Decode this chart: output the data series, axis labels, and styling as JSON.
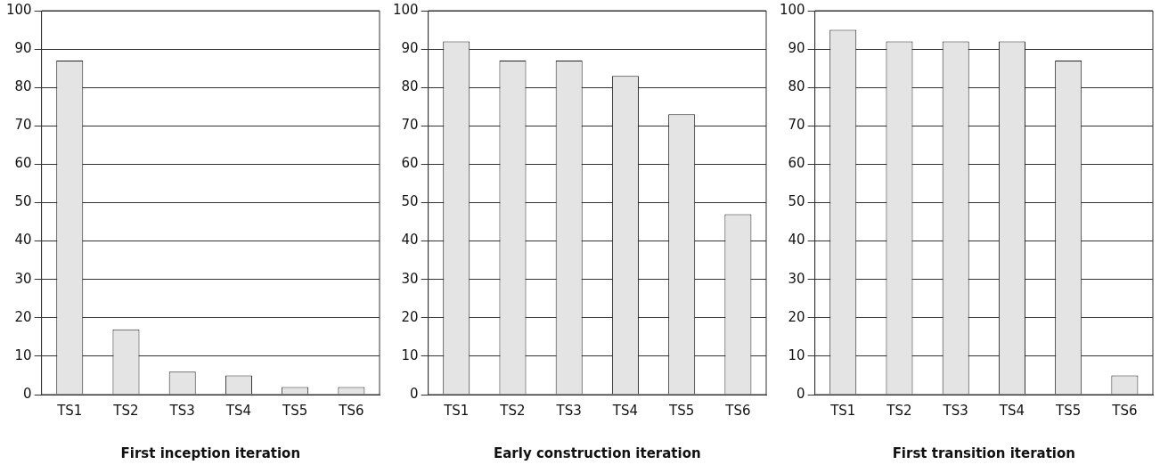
{
  "chart_data": [
    {
      "type": "bar",
      "xlabel": "First inception iteration",
      "categories": [
        "TS1",
        "TS2",
        "TS3",
        "TS4",
        "TS5",
        "TS6"
      ],
      "values": [
        87,
        17,
        6,
        5,
        2,
        2
      ],
      "color": "#e4e4e4",
      "ylim": [
        0,
        100
      ],
      "yticks": [
        0,
        10,
        20,
        30,
        40,
        50,
        60,
        70,
        80,
        90,
        100
      ],
      "grid": "y"
    },
    {
      "type": "bar",
      "xlabel": "Early construction iteration",
      "categories": [
        "TS1",
        "TS2",
        "TS3",
        "TS4",
        "TS5",
        "TS6"
      ],
      "values": [
        92,
        87,
        87,
        83,
        73,
        47
      ],
      "color": "#e4e4e4",
      "ylim": [
        0,
        100
      ],
      "yticks": [
        0,
        10,
        20,
        30,
        40,
        50,
        60,
        70,
        80,
        90,
        100
      ],
      "grid": "y"
    },
    {
      "type": "bar",
      "xlabel": "First transition iteration",
      "categories": [
        "TS1",
        "TS2",
        "TS3",
        "TS4",
        "TS5",
        "TS6"
      ],
      "values": [
        95,
        92,
        92,
        92,
        87,
        5
      ],
      "color": "#e4e4e4",
      "ylim": [
        0,
        100
      ],
      "yticks": [
        0,
        10,
        20,
        30,
        40,
        50,
        60,
        70,
        80,
        90,
        100
      ],
      "grid": "y"
    }
  ]
}
